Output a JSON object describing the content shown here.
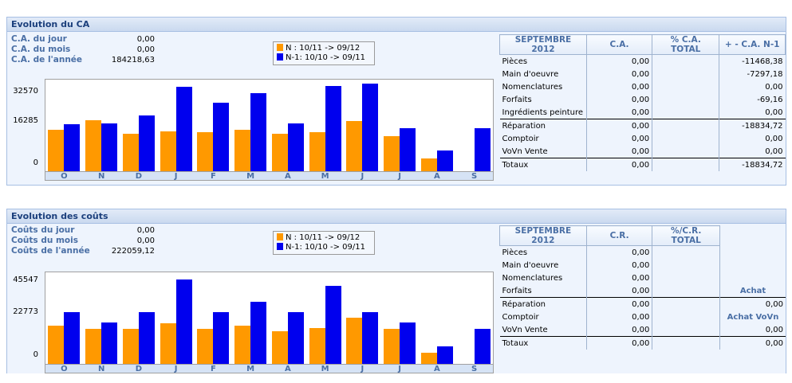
{
  "colors": {
    "n": "#ff9900",
    "n1": "#0000ee"
  },
  "months": [
    "O",
    "N",
    "D",
    "J",
    "F",
    "M",
    "A",
    "M",
    "J",
    "J",
    "A",
    "S"
  ],
  "ca": {
    "title": "Evolution du CA",
    "stats": [
      {
        "label": "C.A. du jour",
        "value": "0,00"
      },
      {
        "label": "C.A. du mois",
        "value": "0,00"
      },
      {
        "label": "C.A. de l'année",
        "value": "184218,63"
      }
    ],
    "legend": [
      {
        "key": "N",
        "text": "N  : 10/11 -> 09/12"
      },
      {
        "key": "N-1",
        "text": "N-1: 10/10 -> 09/11"
      }
    ],
    "chart_data": {
      "type": "bar",
      "categories": [
        "O",
        "N",
        "D",
        "J",
        "F",
        "M",
        "A",
        "M",
        "J",
        "J",
        "A",
        "S"
      ],
      "yticks": [
        "32570",
        "16285",
        "0"
      ],
      "ylim": [
        0,
        35500
      ],
      "series": [
        {
          "name": "N",
          "values": [
            16000,
            19700,
            14400,
            15400,
            15200,
            16200,
            14400,
            15200,
            19400,
            13600,
            4800,
            0
          ]
        },
        {
          "name": "N-1",
          "values": [
            18300,
            18600,
            21500,
            32600,
            26500,
            30400,
            18400,
            32900,
            33900,
            16800,
            8100,
            16800
          ]
        }
      ]
    },
    "table": {
      "headers": [
        "SEPTEMBRE 2012",
        "C.A.",
        "% C.A. TOTAL",
        "+ - C.A. N-1"
      ],
      "rows": [
        {
          "label": "Pièces",
          "ca": "0,00",
          "pct": "",
          "diff": "-11468,38",
          "sep": false
        },
        {
          "label": "Main d'oeuvre",
          "ca": "0,00",
          "pct": "",
          "diff": "-7297,18",
          "sep": false
        },
        {
          "label": "Nomenclatures",
          "ca": "0,00",
          "pct": "",
          "diff": "0,00",
          "sep": false
        },
        {
          "label": "Forfaits",
          "ca": "0,00",
          "pct": "",
          "diff": "-69,16",
          "sep": false
        },
        {
          "label": "Ingrédients peinture",
          "ca": "0,00",
          "pct": "",
          "diff": "0,00",
          "sep": false
        },
        {
          "label": "Réparation",
          "ca": "0,00",
          "pct": "",
          "diff": "-18834,72",
          "sep": true
        },
        {
          "label": "Comptoir",
          "ca": "0,00",
          "pct": "",
          "diff": "0,00",
          "sep": false
        },
        {
          "label": "VoVn Vente",
          "ca": "0,00",
          "pct": "",
          "diff": "0,00",
          "sep": false
        },
        {
          "label": "Totaux",
          "ca": "0,00",
          "pct": "",
          "diff": "-18834,72",
          "sep": true
        }
      ]
    }
  },
  "couts": {
    "title": "Evolution des coûts",
    "stats": [
      {
        "label": "Coûts du jour",
        "value": "0,00"
      },
      {
        "label": "Coûts du mois",
        "value": "0,00"
      },
      {
        "label": "Coûts de l'année",
        "value": "222059,12"
      }
    ],
    "legend": [
      {
        "key": "N",
        "text": "N  : 10/11 -> 09/12"
      },
      {
        "key": "N-1",
        "text": "N-1: 10/10 -> 09/11"
      }
    ],
    "chart_data": {
      "type": "bar",
      "categories": [
        "O",
        "N",
        "D",
        "J",
        "F",
        "M",
        "A",
        "M",
        "J",
        "J",
        "A",
        "S"
      ],
      "yticks": [
        "45547",
        "22773",
        "0"
      ],
      "ylim": [
        0,
        49500
      ],
      "series": [
        {
          "name": "N",
          "values": [
            20500,
            18800,
            18800,
            22000,
            18800,
            20500,
            17600,
            19200,
            25000,
            18800,
            6200,
            0
          ]
        },
        {
          "name": "N-1",
          "values": [
            28000,
            22500,
            28000,
            45500,
            28000,
            33500,
            28000,
            42000,
            28000,
            22500,
            9500,
            19000
          ]
        }
      ]
    },
    "table": {
      "headers": [
        "SEPTEMBRE 2012",
        "C.R.",
        "%/C.R. TOTAL"
      ],
      "achat_label": "Achat",
      "achat_vovn_label": "Achat VoVn",
      "rows": [
        {
          "label": "Pièces",
          "cr": "0,00",
          "pct": "",
          "extra": "",
          "sep": false
        },
        {
          "label": "Main d'oeuvre",
          "cr": "0,00",
          "pct": "",
          "extra": "",
          "sep": false
        },
        {
          "label": "Nomenclatures",
          "cr": "0,00",
          "pct": "",
          "extra": "",
          "sep": false
        },
        {
          "label": "Forfaits",
          "cr": "0,00",
          "pct": "",
          "extra": "",
          "sep": false
        },
        {
          "label": "Réparation",
          "cr": "0,00",
          "pct": "",
          "extra": "0,00",
          "sep": true
        },
        {
          "label": "Comptoir",
          "cr": "0,00",
          "pct": "",
          "extra": "",
          "sep": false
        },
        {
          "label": "VoVn Vente",
          "cr": "0,00",
          "pct": "",
          "extra": "0,00",
          "sep": false
        },
        {
          "label": "Totaux",
          "cr": "0,00",
          "pct": "",
          "extra": "0,00",
          "sep": true
        }
      ]
    }
  }
}
